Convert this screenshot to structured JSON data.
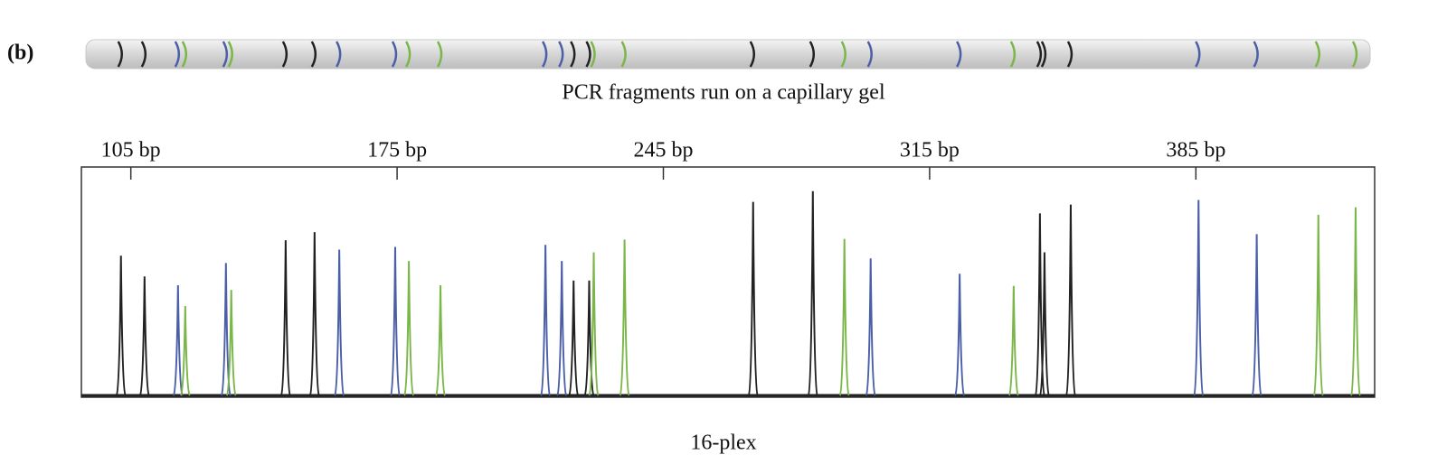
{
  "label": "(b)",
  "gel_caption": "PCR fragments run on a capillary gel",
  "chart_data": {
    "type": "peaks",
    "caption": "16-plex",
    "xlim": [
      92,
      432
    ],
    "ylim": [
      0,
      340
    ],
    "xticks": [
      {
        "value": 105,
        "label": "105 bp"
      },
      {
        "value": 175,
        "label": "175 bp"
      },
      {
        "value": 245,
        "label": "245 bp"
      },
      {
        "value": 315,
        "label": "315 bp"
      },
      {
        "value": 385,
        "label": "385 bp"
      }
    ],
    "series": [
      {
        "color": "#222222",
        "x": [
          102.4,
          108.6,
          145.7,
          153.3,
          221.4,
          225.5,
          268.6,
          284.3,
          344,
          345.2,
          352.1
        ],
        "values": [
          208,
          177,
          231,
          243,
          171,
          171,
          288,
          304,
          271,
          213,
          284
        ]
      },
      {
        "color": "#4a5fa8",
        "x": [
          117.4,
          130,
          159.8,
          174.5,
          214,
          218.3,
          299.5,
          322.9,
          385.7,
          401
        ],
        "values": [
          164,
          197,
          217,
          221,
          224,
          200,
          204,
          181,
          291,
          240
        ]
      },
      {
        "color": "#7ab648",
        "x": [
          119.3,
          131.4,
          178.1,
          186.4,
          226.7,
          234.8,
          292.6,
          337.1,
          417.2,
          427
        ],
        "values": [
          133,
          157,
          200,
          164,
          213,
          232,
          233,
          163,
          269,
          280
        ]
      }
    ]
  }
}
